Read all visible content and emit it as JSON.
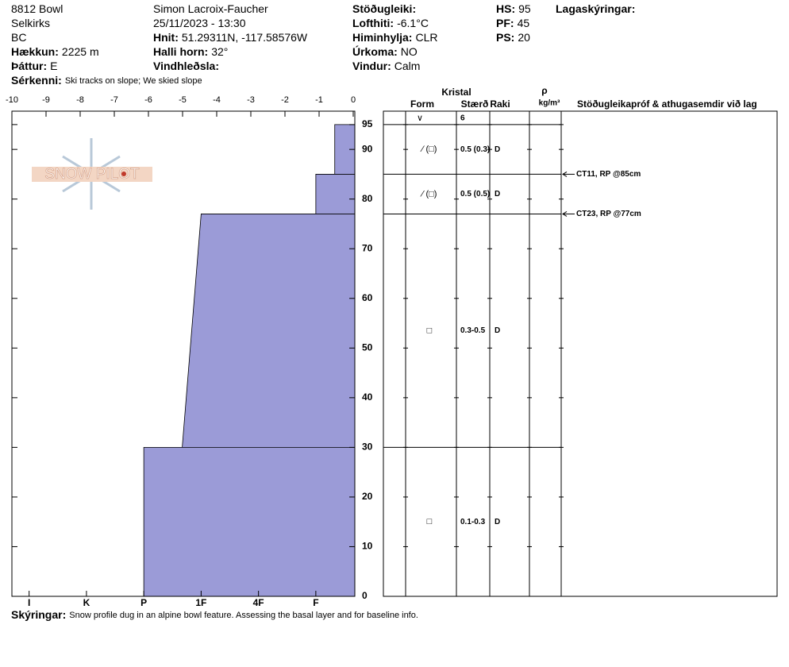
{
  "header": {
    "columns": [
      [
        {
          "value": "8812 Bowl"
        },
        {
          "value": "Selkirks"
        },
        {
          "value": "BC"
        },
        {
          "label": "Hækkun:",
          "value": "2225 m"
        },
        {
          "label": "Þáttur:",
          "value": "E"
        }
      ],
      [
        {
          "value": "Simon Lacroix-Faucher"
        },
        {
          "value": "25/11/2023 - 13:30"
        },
        {
          "label": "Hnit:",
          "value": "51.29311N, -117.58576W"
        },
        {
          "label": "Halli horn:",
          "value": "32°"
        },
        {
          "label": "Vindhleðsla:"
        }
      ],
      [
        {
          "label": "Stöðugleiki:"
        },
        {
          "label": "Lofthiti:",
          "value": "-6.1°C"
        },
        {
          "label": "Himinhylja:",
          "value": "CLR"
        },
        {
          "label": "Úrkoma:",
          "value": "NO"
        },
        {
          "label": "Vindur:",
          "value": "Calm"
        }
      ],
      [
        {
          "label": "HS:",
          "value": "95"
        },
        {
          "label": "PF:",
          "value": "45"
        },
        {
          "label": "PS:",
          "value": "20"
        }
      ],
      [
        {
          "label": "Lagaskýringar:"
        }
      ]
    ],
    "features": {
      "label": "Sérkenni:",
      "value": "Ski tracks on slope; We skied slope"
    }
  },
  "logo": "SNOW PILOT",
  "profile": {
    "temp_lim": [
      -10,
      0
    ],
    "temp_ticks": [
      -10,
      -9,
      -8,
      -7,
      -6,
      -5,
      -4,
      -3,
      -2,
      -1,
      0
    ],
    "height_lim": [
      0,
      97.7
    ],
    "height_ticks": [
      0,
      10,
      20,
      30,
      40,
      50,
      60,
      70,
      80,
      90,
      95
    ],
    "hardness_lim": [
      6.3,
      0.32
    ],
    "hardness_ticks": [
      {
        "value": 6,
        "label": "I"
      },
      {
        "value": 5,
        "label": "K"
      },
      {
        "value": 4,
        "label": "P"
      },
      {
        "value": 3,
        "label": "1F"
      },
      {
        "value": 2,
        "label": "4F"
      },
      {
        "value": 1,
        "label": "F"
      }
    ],
    "color": "#9b9bd7",
    "layers": [
      {
        "top": 95,
        "bottom": 85,
        "hardness_top": 0.67,
        "hardness_bottom": 0.67,
        "form": "⁄ (□)",
        "size": "0.5 (0.3)",
        "moisture": "D"
      },
      {
        "top": 85,
        "bottom": 77,
        "hardness_top": 1,
        "hardness_bottom": 1,
        "form": "⁄ (□)",
        "size": "0.5 (0.5)",
        "moisture": "D"
      },
      {
        "top": 77,
        "bottom": 30,
        "hardness_top": 3,
        "hardness_bottom": 3.33,
        "form": "□",
        "size": "0.3-0.5",
        "moisture": "D"
      },
      {
        "top": 30,
        "bottom": 0,
        "hardness_top": 4,
        "hardness_bottom": 4,
        "form": "□",
        "size": "0.1-0.3",
        "moisture": "D"
      }
    ],
    "surface": {
      "form": "∨",
      "size": "6"
    },
    "tests": [
      {
        "height": 85,
        "text": "CT11, RP @85cm"
      },
      {
        "height": 77,
        "text": "CT23, RP @77cm"
      }
    ]
  },
  "table_headers": {
    "crystal": "Kristal",
    "form": "Form",
    "size": "Stærð",
    "moisture": "Raki",
    "density": "ρ",
    "density_unit": "kg/m³",
    "comments": "Stöðugleikapróf & athugasemdir við lag"
  },
  "footer": {
    "label": "Skýringar:",
    "value": "Snow profile dug in an alpine bowl feature. Assessing the basal layer and for baseline info."
  }
}
